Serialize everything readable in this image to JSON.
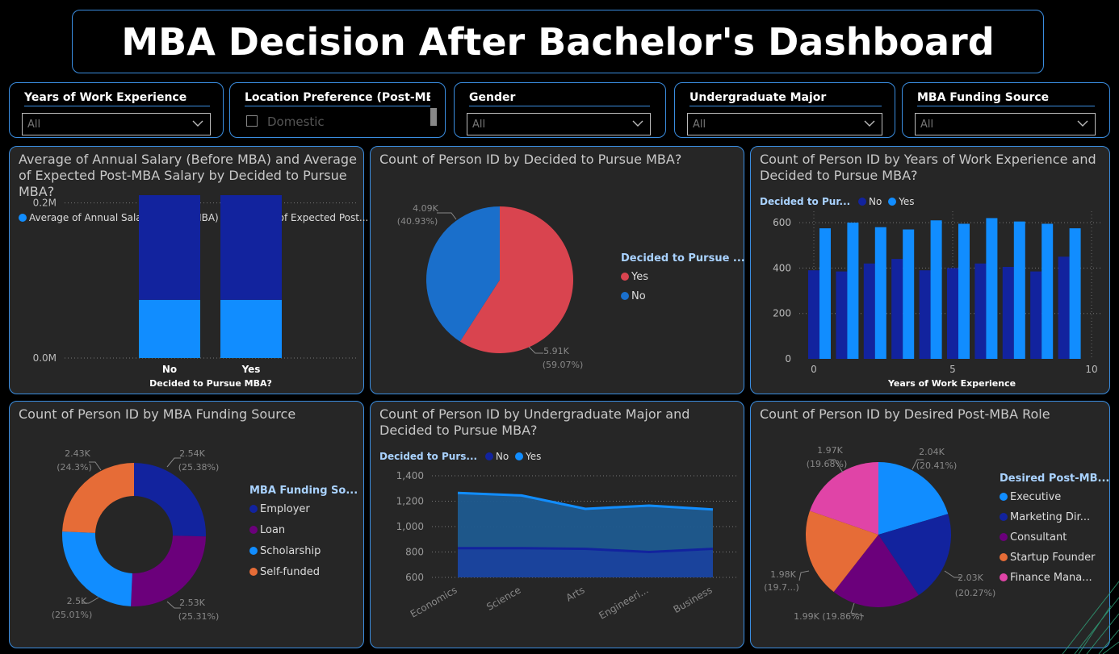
{
  "title": "MBA Decision After Bachelor's Dashboard",
  "colors": {
    "no_dark": "#12239e",
    "yes_light": "#118dff",
    "red": "#d9444f",
    "pie_blue": "#1a6fcb",
    "purple": "#6b007b",
    "orange": "#e66c37",
    "pink": "#e044a7",
    "panel_border": "#3a8de0"
  },
  "slicers": [
    {
      "label": "Years of Work Experience",
      "value": "All"
    },
    {
      "label": "Location Preference (Post-MB...",
      "value": "Domestic"
    },
    {
      "label": "Gender",
      "value": "All"
    },
    {
      "label": "Undergraduate Major",
      "value": "All"
    },
    {
      "label": "MBA Funding Source",
      "value": "All"
    }
  ],
  "panels": {
    "salary": {
      "title": "Average of Annual Salary (Before MBA) and Average of Expected Post-MBA Salary by Decided to Pursue MBA?",
      "legend": [
        "Average of Annual Salary (Before MBA)",
        "Average of Expected Post..."
      ],
      "xlabel": "Decided to Pursue MBA?",
      "yticks": [
        "0.0M",
        "0.2M"
      ]
    },
    "pie_decision": {
      "title": "Count of Person ID by Decided to Pursue MBA?",
      "legend_title": "Decided to Pursue ...",
      "legend": [
        "Yes",
        "No"
      ],
      "labels": {
        "no_val": "4.09K",
        "no_pct": "(40.93%)",
        "yes_val": "5.91K",
        "yes_pct": "(59.07%)"
      }
    },
    "work_exp": {
      "title": "Count of Person ID by Years of Work Experience and Decided to Pursue MBA?",
      "legend_title": "Decided to Pur...",
      "legend": [
        "No",
        "Yes"
      ],
      "xlabel": "Years of Work Experience",
      "yticks": [
        "0",
        "200",
        "400",
        "600"
      ],
      "xticks": [
        "0",
        "5",
        "10"
      ]
    },
    "funding": {
      "title": "Count of Person ID by MBA Funding Source",
      "legend_title": "MBA Funding So...",
      "legend": [
        "Employer",
        "Loan",
        "Scholarship",
        "Self-funded"
      ],
      "labels": [
        {
          "val": "2.54K",
          "pct": "(25.38%)"
        },
        {
          "val": "2.53K",
          "pct": "(25.31%)"
        },
        {
          "val": "2.5K",
          "pct": "(25.01%)"
        },
        {
          "val": "2.43K",
          "pct": "(24.3%)"
        }
      ]
    },
    "major": {
      "title": "Count of Person ID by Undergraduate Major and Decided to Pursue MBA?",
      "legend_title": "Decided to Purs...",
      "legend": [
        "No",
        "Yes"
      ],
      "yticks": [
        "600",
        "800",
        "1,000",
        "1,200",
        "1,400"
      ],
      "xticks": [
        "Economics",
        "Science",
        "Arts",
        "Engineeri...",
        "Business"
      ]
    },
    "role": {
      "title": "Count of Person ID by Desired Post-MBA Role",
      "legend_title": "Desired Post-MB...",
      "legend": [
        "Executive",
        "Marketing Dir...",
        "Consultant",
        "Startup Founder",
        "Finance Mana..."
      ],
      "labels": [
        {
          "val": "2.04K",
          "pct": "(20.41%)"
        },
        {
          "val": "2.03K",
          "pct": "(20.27%)"
        },
        {
          "val": "1.99K",
          "pct": "(19.86%)"
        },
        {
          "val": "1.98K",
          "pct": "(19.7...)"
        },
        {
          "val": "1.97K",
          "pct": "(19.68%)"
        }
      ]
    }
  },
  "chart_data": [
    {
      "type": "bar",
      "stacked": true,
      "categories": [
        "No",
        "Yes"
      ],
      "series": [
        {
          "name": "Average of Annual Salary (Before MBA)",
          "values": [
            75000,
            75000
          ]
        },
        {
          "name": "Average of Expected Post...",
          "values": [
            135000,
            135000
          ]
        }
      ],
      "ylim": [
        0,
        210000
      ]
    },
    {
      "type": "pie",
      "categories": [
        "Yes",
        "No"
      ],
      "values": [
        5910,
        4090
      ]
    },
    {
      "type": "bar",
      "categories": [
        "0",
        "1",
        "2",
        "3",
        "4",
        "5",
        "6",
        "7",
        "8",
        "9"
      ],
      "series": [
        {
          "name": "No",
          "values": [
            390,
            385,
            420,
            440,
            390,
            400,
            420,
            405,
            385,
            450
          ]
        },
        {
          "name": "Yes",
          "values": [
            575,
            600,
            580,
            570,
            610,
            595,
            620,
            605,
            595,
            575
          ]
        }
      ],
      "ylim": [
        0,
        650
      ],
      "xlim": [
        0,
        10
      ]
    },
    {
      "type": "pie",
      "donut": true,
      "categories": [
        "Employer",
        "Loan",
        "Scholarship",
        "Self-funded"
      ],
      "values": [
        2540,
        2530,
        2500,
        2430
      ]
    },
    {
      "type": "area",
      "categories": [
        "Economics",
        "Science",
        "Arts",
        "Engineeri...",
        "Business"
      ],
      "series": [
        {
          "name": "No",
          "values": [
            830,
            830,
            825,
            800,
            825
          ]
        },
        {
          "name": "Yes",
          "values": [
            1265,
            1245,
            1140,
            1165,
            1135
          ]
        }
      ],
      "ylim": [
        600,
        1400
      ]
    },
    {
      "type": "pie",
      "categories": [
        "Executive",
        "Marketing Dir...",
        "Consultant",
        "Startup Founder",
        "Finance Mana..."
      ],
      "values": [
        2040,
        2030,
        1990,
        1980,
        1970
      ]
    }
  ]
}
